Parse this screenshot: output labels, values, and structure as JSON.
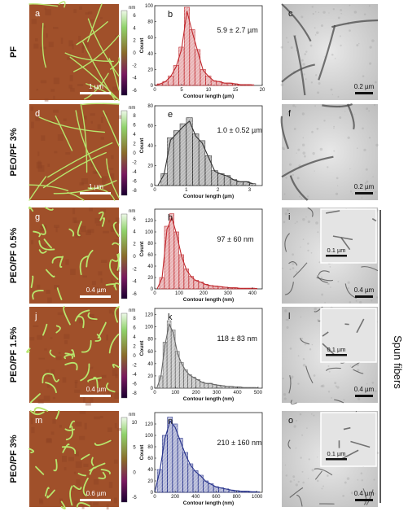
{
  "figure": {
    "side_label": "Spun fibers",
    "rows": [
      {
        "sample": "PF",
        "afm": {
          "letter": "a",
          "scale_bar": "1 µm",
          "cb_unit": "nm",
          "cb_ticks": [
            "6",
            "4",
            "2",
            "0",
            "-2",
            "-4",
            "-6"
          ]
        },
        "hist": {
          "letter": "b",
          "annotation": "5.9 ± 2.7 µm",
          "xlabel": "Contour length (µm)",
          "ylabel": "Count",
          "color": "#c0282d"
        },
        "tem": {
          "letter": "c",
          "scale_bar": "0.2 µm",
          "inset_scale_bar": ""
        }
      },
      {
        "sample": "PEO/PF 3%",
        "afm": {
          "letter": "d",
          "scale_bar": "1 µm",
          "cb_unit": "nm",
          "cb_ticks": [
            "8",
            "6",
            "4",
            "2",
            "0",
            "-2",
            "-4",
            "-6",
            "-8"
          ]
        },
        "hist": {
          "letter": "e",
          "annotation": "1.0 ± 0.52 µm",
          "xlabel": "Contour length (µm)",
          "ylabel": "Count",
          "color": "#333333"
        },
        "tem": {
          "letter": "f",
          "scale_bar": "0.2 µm",
          "inset_scale_bar": ""
        }
      },
      {
        "sample": "PEO/PF 0.5%",
        "afm": {
          "letter": "g",
          "scale_bar": "0.4 µm",
          "cb_unit": "nm",
          "cb_ticks": [
            "6",
            "4",
            "2",
            "0",
            "-2",
            "-4",
            "-6"
          ]
        },
        "hist": {
          "letter": "h",
          "annotation": "97 ± 60 nm",
          "xlabel": "Contour length (nm)",
          "ylabel": "Count",
          "color": "#c0282d"
        },
        "tem": {
          "letter": "i",
          "scale_bar": "0.4 µm",
          "inset_scale_bar": "0.1 µm"
        }
      },
      {
        "sample": "PEO/PF 1.5%",
        "afm": {
          "letter": "j",
          "scale_bar": "0.4 µm",
          "cb_unit": "nm",
          "cb_ticks": [
            "8",
            "6",
            "4",
            "2",
            "0",
            "-2",
            "-4",
            "-6",
            "-8"
          ]
        },
        "hist": {
          "letter": "k",
          "annotation": "118 ± 83 nm",
          "xlabel": "Contour length (nm)",
          "ylabel": "Count",
          "color": "#666666"
        },
        "tem": {
          "letter": "l",
          "scale_bar": "0.4 µm",
          "inset_scale_bar": "0.1 µm"
        }
      },
      {
        "sample": "PEO/PF 3%",
        "afm": {
          "letter": "m",
          "scale_bar": "0.6 µm",
          "cb_unit": "nm",
          "cb_ticks": [
            "10",
            "5",
            "0",
            "-5"
          ]
        },
        "hist": {
          "letter": "n",
          "annotation": "210 ± 160 nm",
          "xlabel": "Contour length (nm)",
          "ylabel": "Count",
          "color": "#24308a"
        },
        "tem": {
          "letter": "o",
          "scale_bar": "0.4 µm",
          "inset_scale_bar": "0.1 µm"
        }
      }
    ]
  },
  "chart_data": [
    {
      "type": "bar",
      "letter": "b",
      "xlabel": "Contour length (µm)",
      "ylabel": "Count",
      "xlim": [
        0,
        20
      ],
      "ylim": [
        0,
        100
      ],
      "xticks": [
        0,
        5,
        10,
        15,
        20
      ],
      "yticks": [
        0,
        20,
        40,
        60,
        80,
        100
      ],
      "bins": [
        1,
        2,
        3,
        4,
        5,
        6,
        7,
        8,
        9,
        10,
        11,
        12,
        13,
        14,
        15,
        16,
        17,
        18
      ],
      "values": [
        2,
        5,
        12,
        25,
        48,
        98,
        70,
        45,
        20,
        12,
        6,
        5,
        3,
        3,
        2,
        1,
        1,
        1
      ],
      "fit": "lognormal"
    },
    {
      "type": "bar",
      "letter": "e",
      "xlabel": "Contour length (µm)",
      "ylabel": "Count",
      "xlim": [
        0,
        3.4
      ],
      "ylim": [
        0,
        80
      ],
      "xticks": [
        0,
        1,
        2,
        3
      ],
      "yticks": [
        0,
        20,
        40,
        60,
        80
      ],
      "bins": [
        0.3,
        0.5,
        0.7,
        0.9,
        1.1,
        1.3,
        1.5,
        1.7,
        1.9,
        2.1,
        2.3,
        2.5,
        2.7,
        2.9,
        3.1
      ],
      "values": [
        12,
        48,
        55,
        62,
        68,
        52,
        45,
        30,
        15,
        12,
        10,
        6,
        4,
        4,
        2
      ],
      "fit": "lognormal"
    },
    {
      "type": "bar",
      "letter": "h",
      "xlabel": "Contour length (nm)",
      "ylabel": "Count",
      "xlim": [
        0,
        440
      ],
      "ylim": [
        0,
        140
      ],
      "xticks": [
        0,
        100,
        200,
        300,
        400
      ],
      "yticks": [
        0,
        20,
        40,
        60,
        80,
        100,
        120
      ],
      "bins": [
        30,
        50,
        70,
        90,
        110,
        130,
        150,
        170,
        190,
        210,
        230,
        250,
        270,
        290,
        310,
        330,
        350,
        370,
        390,
        410
      ],
      "values": [
        20,
        110,
        132,
        100,
        60,
        35,
        22,
        15,
        12,
        8,
        6,
        5,
        4,
        3,
        2,
        2,
        1,
        1,
        1,
        1
      ],
      "fit": "lognormal"
    },
    {
      "type": "bar",
      "letter": "k",
      "xlabel": "Contour length (nm)",
      "ylabel": "Count",
      "xlim": [
        0,
        520
      ],
      "ylim": [
        0,
        130
      ],
      "xticks": [
        0,
        100,
        200,
        300,
        400,
        500
      ],
      "yticks": [
        0,
        20,
        40,
        60,
        80,
        100,
        120
      ],
      "bins": [
        30,
        50,
        70,
        90,
        110,
        130,
        150,
        170,
        190,
        210,
        230,
        250,
        270,
        290,
        310,
        330,
        350,
        370,
        390,
        410,
        430,
        450,
        470,
        490
      ],
      "values": [
        20,
        75,
        110,
        95,
        60,
        42,
        30,
        22,
        18,
        14,
        10,
        8,
        8,
        6,
        5,
        4,
        3,
        3,
        2,
        2,
        1,
        1,
        1,
        1
      ],
      "fit": "lognormal"
    },
    {
      "type": "bar",
      "letter": "n",
      "xlabel": "Contour length (nm)",
      "ylabel": "Count",
      "xlim": [
        0,
        1050
      ],
      "ylim": [
        0,
        140
      ],
      "xticks": [
        0,
        200,
        400,
        600,
        800,
        1000
      ],
      "yticks": [
        0,
        20,
        40,
        60,
        80,
        100,
        120
      ],
      "bins": [
        50,
        100,
        150,
        200,
        250,
        300,
        350,
        400,
        450,
        500,
        550,
        600,
        650,
        700,
        750,
        800,
        850,
        900,
        950,
        1000
      ],
      "values": [
        40,
        100,
        132,
        120,
        95,
        70,
        50,
        38,
        30,
        20,
        15,
        10,
        8,
        6,
        4,
        3,
        2,
        2,
        1,
        1
      ],
      "fit": "lognormal"
    }
  ]
}
